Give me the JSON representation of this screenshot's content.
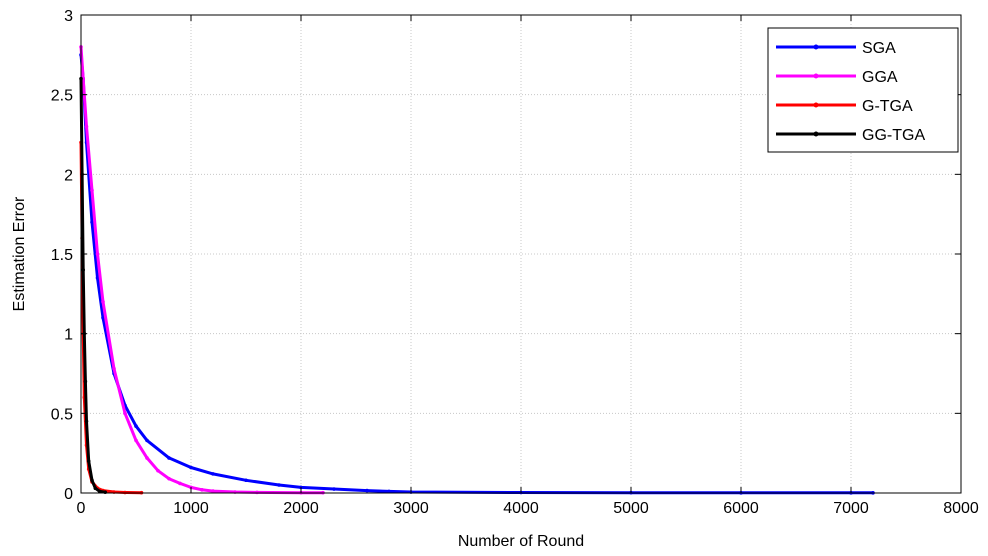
{
  "chart_data": {
    "type": "line",
    "title": "",
    "xlabel": "Number of Round",
    "ylabel": "Estimation Error",
    "xlim": [
      0,
      8000
    ],
    "ylim": [
      0,
      3
    ],
    "xticks": [
      0,
      1000,
      2000,
      3000,
      4000,
      5000,
      6000,
      7000,
      8000
    ],
    "yticks": [
      0,
      0.5,
      1,
      1.5,
      2,
      2.5,
      3
    ],
    "xtick_labels": [
      "0",
      "1000",
      "2000",
      "3000",
      "4000",
      "5000",
      "6000",
      "7000",
      "8000"
    ],
    "ytick_labels": [
      "0",
      "0.5",
      "1",
      "1.5",
      "2",
      "2.5",
      "3"
    ],
    "grid": true,
    "legend_position": "top-right",
    "series": [
      {
        "name": "SGA",
        "color": "#0000ff",
        "x": [
          0,
          20,
          50,
          100,
          150,
          200,
          300,
          400,
          500,
          600,
          800,
          1000,
          1200,
          1500,
          1800,
          2000,
          2300,
          2600,
          2800,
          3000,
          4000,
          5000,
          6000,
          7000,
          7200
        ],
        "y": [
          2.75,
          2.6,
          2.2,
          1.7,
          1.35,
          1.1,
          0.75,
          0.55,
          0.42,
          0.33,
          0.22,
          0.16,
          0.12,
          0.08,
          0.05,
          0.035,
          0.025,
          0.015,
          0.01,
          0.006,
          0.003,
          0.002,
          0.001,
          0.001,
          0.001
        ]
      },
      {
        "name": "GGA",
        "color": "#ff00ff",
        "x": [
          0,
          20,
          50,
          100,
          150,
          200,
          300,
          400,
          500,
          600,
          700,
          800,
          900,
          1000,
          1100,
          1200,
          1400,
          1600,
          2000,
          2200
        ],
        "y": [
          2.8,
          2.6,
          2.3,
          1.9,
          1.5,
          1.2,
          0.78,
          0.5,
          0.33,
          0.22,
          0.14,
          0.09,
          0.06,
          0.035,
          0.02,
          0.012,
          0.006,
          0.004,
          0.002,
          0.002
        ]
      },
      {
        "name": "G-TGA",
        "color": "#ff0000",
        "x": [
          0,
          10,
          20,
          30,
          50,
          70,
          100,
          150,
          200,
          300,
          400,
          550
        ],
        "y": [
          2.2,
          1.6,
          1.0,
          0.6,
          0.3,
          0.15,
          0.07,
          0.03,
          0.015,
          0.006,
          0.003,
          0.002
        ]
      },
      {
        "name": "GG-TGA",
        "color": "#000000",
        "x": [
          0,
          10,
          20,
          30,
          40,
          50,
          70,
          100,
          130,
          170,
          220
        ],
        "y": [
          2.6,
          2.0,
          1.4,
          1.0,
          0.7,
          0.45,
          0.2,
          0.08,
          0.03,
          0.01,
          0.005
        ]
      }
    ]
  }
}
